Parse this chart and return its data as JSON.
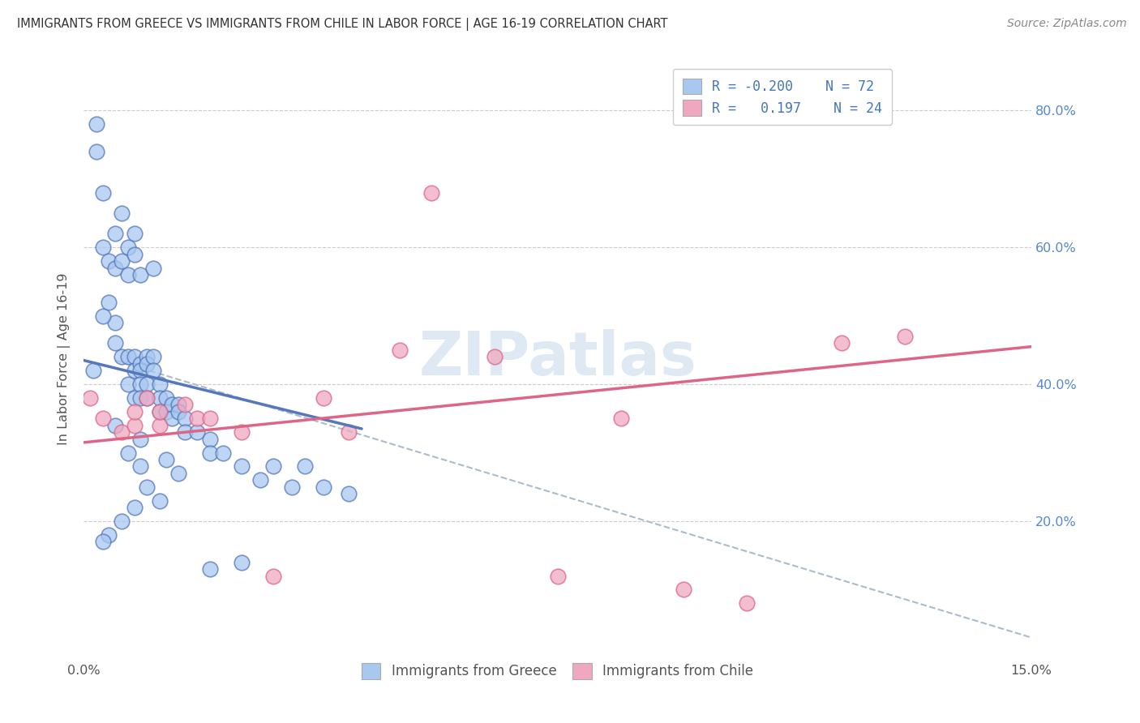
{
  "title": "IMMIGRANTS FROM GREECE VS IMMIGRANTS FROM CHILE IN LABOR FORCE | AGE 16-19 CORRELATION CHART",
  "source": "Source: ZipAtlas.com",
  "ylabel": "In Labor Force | Age 16-19",
  "right_yticks": [
    "20.0%",
    "40.0%",
    "60.0%",
    "80.0%"
  ],
  "right_ytick_vals": [
    0.2,
    0.4,
    0.6,
    0.8
  ],
  "watermark": "ZIPatlas",
  "color_greece": "#a8c8f0",
  "color_chile": "#f0a8c0",
  "color_greece_line": "#5577bb",
  "color_chile_line": "#dd6688",
  "color_dashed": "#aabbcc",
  "greece_scatter_x": [
    0.0015,
    0.002,
    0.002,
    0.003,
    0.003,
    0.004,
    0.004,
    0.005,
    0.005,
    0.005,
    0.006,
    0.006,
    0.006,
    0.007,
    0.007,
    0.007,
    0.007,
    0.008,
    0.008,
    0.008,
    0.008,
    0.008,
    0.009,
    0.009,
    0.009,
    0.009,
    0.009,
    0.01,
    0.01,
    0.01,
    0.01,
    0.011,
    0.011,
    0.011,
    0.012,
    0.012,
    0.012,
    0.013,
    0.013,
    0.014,
    0.014,
    0.015,
    0.015,
    0.016,
    0.016,
    0.018,
    0.02,
    0.02,
    0.022,
    0.025,
    0.028,
    0.03,
    0.033,
    0.035,
    0.038,
    0.042,
    0.003,
    0.005,
    0.007,
    0.009,
    0.013,
    0.015,
    0.02,
    0.025,
    0.01,
    0.012,
    0.008,
    0.006,
    0.004,
    0.003,
    0.005,
    0.009
  ],
  "greece_scatter_y": [
    0.42,
    0.78,
    0.74,
    0.68,
    0.6,
    0.58,
    0.52,
    0.57,
    0.62,
    0.49,
    0.65,
    0.58,
    0.44,
    0.44,
    0.4,
    0.56,
    0.6,
    0.44,
    0.42,
    0.59,
    0.62,
    0.38,
    0.43,
    0.42,
    0.56,
    0.4,
    0.38,
    0.44,
    0.43,
    0.4,
    0.38,
    0.44,
    0.42,
    0.57,
    0.4,
    0.38,
    0.36,
    0.38,
    0.36,
    0.37,
    0.35,
    0.37,
    0.36,
    0.35,
    0.33,
    0.33,
    0.32,
    0.3,
    0.3,
    0.28,
    0.26,
    0.28,
    0.25,
    0.28,
    0.25,
    0.24,
    0.5,
    0.46,
    0.3,
    0.28,
    0.29,
    0.27,
    0.13,
    0.14,
    0.25,
    0.23,
    0.22,
    0.2,
    0.18,
    0.17,
    0.34,
    0.32
  ],
  "chile_scatter_x": [
    0.001,
    0.003,
    0.006,
    0.008,
    0.008,
    0.01,
    0.012,
    0.012,
    0.016,
    0.018,
    0.02,
    0.025,
    0.03,
    0.038,
    0.042,
    0.05,
    0.055,
    0.065,
    0.075,
    0.085,
    0.095,
    0.105,
    0.12,
    0.13
  ],
  "chile_scatter_y": [
    0.38,
    0.35,
    0.33,
    0.34,
    0.36,
    0.38,
    0.34,
    0.36,
    0.37,
    0.35,
    0.35,
    0.33,
    0.12,
    0.38,
    0.33,
    0.45,
    0.68,
    0.44,
    0.12,
    0.35,
    0.1,
    0.08,
    0.46,
    0.47
  ],
  "greece_line_x": [
    0.0,
    0.044
  ],
  "greece_line_y": [
    0.435,
    0.335
  ],
  "chile_line_x": [
    0.0,
    0.15
  ],
  "chile_line_y": [
    0.315,
    0.455
  ],
  "dashed_line_x": [
    0.005,
    0.15
  ],
  "dashed_line_y": [
    0.435,
    0.03
  ],
  "xlim": [
    0.0,
    0.15
  ],
  "ylim": [
    0.0,
    0.875
  ]
}
